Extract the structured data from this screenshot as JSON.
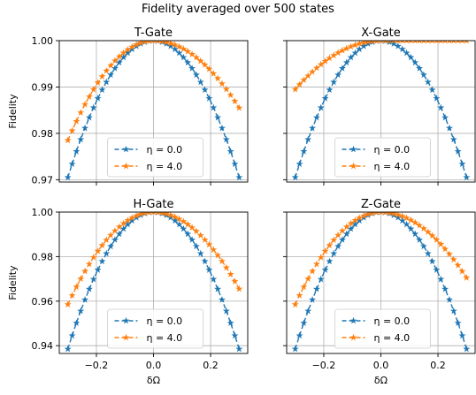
{
  "figure": {
    "suptitle": "Fidelity averaged over 500 states"
  },
  "legend_entries": [
    "η = 0.0",
    "η = 4.0"
  ],
  "chart_data": [
    {
      "type": "line",
      "title": "T-Gate",
      "xlabel": "",
      "ylabel": "Fidelity",
      "xlim": [
        -0.33,
        0.33
      ],
      "ylim": [
        0.9695,
        1.0
      ],
      "x_range": [
        -0.3,
        0.3
      ],
      "xticks": [
        -0.2,
        0.0,
        0.2
      ],
      "xtick_labels": [
        "",
        "",
        ""
      ],
      "yticks": [
        0.97,
        0.98,
        0.99,
        1.0
      ],
      "ytick_labels": [
        "0.97",
        "0.98",
        "0.99",
        "1.00"
      ],
      "grid": true,
      "legend_position": "lower-center",
      "series": [
        {
          "name": "η = 0.0",
          "color": "#1f77b4",
          "marker": "star",
          "linestyle": "dashed",
          "peak": 1.0,
          "edge": 0.9705
        },
        {
          "name": "η = 4.0",
          "color": "#ff7f0e",
          "marker": "star",
          "linestyle": "dashed",
          "peak": 1.0,
          "edge_left": 0.9785,
          "edge_right": 0.9855
        }
      ]
    },
    {
      "type": "line",
      "title": "X-Gate",
      "xlabel": "",
      "ylabel": "",
      "xlim": [
        -0.33,
        0.33
      ],
      "ylim": [
        0.9695,
        1.0
      ],
      "x_range": [
        -0.3,
        0.3
      ],
      "xticks": [
        -0.2,
        0.0,
        0.2
      ],
      "xtick_labels": [
        "",
        "",
        ""
      ],
      "yticks": [
        0.97,
        0.98,
        0.99,
        1.0
      ],
      "ytick_labels": [
        "",
        "",
        "",
        ""
      ],
      "grid": true,
      "legend_position": "lower-center",
      "series": [
        {
          "name": "η = 0.0",
          "color": "#1f77b4",
          "marker": "star",
          "linestyle": "dashed",
          "peak": 1.0,
          "edge": 0.9705
        },
        {
          "name": "η = 4.0",
          "color": "#ff7f0e",
          "marker": "star",
          "linestyle": "dashed",
          "peak": 1.0,
          "edge_left": 0.9895,
          "plateau_from": 0.0
        }
      ]
    },
    {
      "type": "line",
      "title": "H-Gate",
      "xlabel": "δΩ",
      "ylabel": "Fidelity",
      "xlim": [
        -0.33,
        0.33
      ],
      "ylim": [
        0.9365,
        1.0
      ],
      "x_range": [
        -0.3,
        0.3
      ],
      "xticks": [
        -0.2,
        0.0,
        0.2
      ],
      "xtick_labels": [
        "−0.2",
        "0.0",
        "0.2"
      ],
      "yticks": [
        0.94,
        0.96,
        0.98,
        1.0
      ],
      "ytick_labels": [
        "0.94",
        "0.96",
        "0.98",
        "1.00"
      ],
      "grid": true,
      "legend_position": "lower-center",
      "series": [
        {
          "name": "η = 0.0",
          "color": "#1f77b4",
          "marker": "star",
          "linestyle": "dashed",
          "peak": 1.0,
          "edge": 0.9385
        },
        {
          "name": "η = 4.0",
          "color": "#ff7f0e",
          "marker": "star",
          "linestyle": "dashed",
          "peak": 1.0,
          "edge_left": 0.9585,
          "edge_right": 0.9655
        }
      ]
    },
    {
      "type": "line",
      "title": "Z-Gate",
      "xlabel": "δΩ",
      "ylabel": "",
      "xlim": [
        -0.33,
        0.33
      ],
      "ylim": [
        0.9365,
        1.0
      ],
      "x_range": [
        -0.3,
        0.3
      ],
      "xticks": [
        -0.2,
        0.0,
        0.2
      ],
      "xtick_labels": [
        "−0.2",
        "0.0",
        "0.2"
      ],
      "yticks": [
        0.94,
        0.96,
        0.98,
        1.0
      ],
      "ytick_labels": [
        "",
        "",
        "",
        ""
      ],
      "grid": true,
      "legend_position": "lower-center",
      "series": [
        {
          "name": "η = 0.0",
          "color": "#1f77b4",
          "marker": "star",
          "linestyle": "dashed",
          "peak": 1.0,
          "edge": 0.9385
        },
        {
          "name": "η = 4.0",
          "color": "#ff7f0e",
          "marker": "star",
          "linestyle": "dashed",
          "peak": 1.0,
          "edge_left": 0.9585,
          "edge_right": 0.9705
        }
      ]
    }
  ]
}
